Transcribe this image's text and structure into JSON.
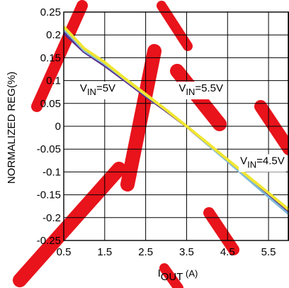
{
  "chart_data": {
    "type": "line",
    "xlabel": "I",
    "xlabel_sub": "OUT",
    "xlabel_unit": " (A)",
    "ylabel": "NORMALIZED REG(%)",
    "xlim": [
      0.5,
      6.0
    ],
    "ylim": [
      -0.25,
      0.25
    ],
    "x_ticks": [
      0.5,
      1.5,
      2.5,
      3.5,
      4.5,
      5.5
    ],
    "y_ticks": [
      0.25,
      0.2,
      0.15,
      0.1,
      0.05,
      0,
      -0.05,
      -0.1,
      -0.15,
      -0.2,
      -0.25
    ],
    "x_tick_labels": [
      "0.5",
      "1.5",
      "2.5",
      "3.5",
      "4.5",
      "5.5"
    ],
    "y_tick_labels": [
      "0.25",
      "0.2",
      "0.15",
      "0.1",
      "0.05",
      "0",
      "-0.05",
      "-0.1",
      "-0.15",
      "-0.2",
      "-0.25"
    ],
    "grid": true,
    "series": [
      {
        "name": "VIN=5V",
        "color": "#5b2d8c",
        "x": [
          0.5,
          1.0,
          1.5,
          2.0,
          2.5,
          3.0,
          3.5,
          4.0,
          4.5,
          5.0,
          5.5,
          6.0
        ],
        "y": [
          0.205,
          0.163,
          0.133,
          0.1,
          0.066,
          0.034,
          0.0,
          -0.038,
          -0.075,
          -0.112,
          -0.15,
          -0.188
        ]
      },
      {
        "name": "VIN=5.5V",
        "color": "#7fb8d8",
        "x": [
          0.5,
          1.0,
          1.5,
          2.0,
          2.5,
          3.0,
          3.5,
          4.0,
          4.5,
          5.0,
          5.5,
          6.0
        ],
        "y": [
          0.212,
          0.165,
          0.136,
          0.102,
          0.068,
          0.035,
          0.0,
          -0.039,
          -0.077,
          -0.116,
          -0.155,
          -0.193
        ]
      },
      {
        "name": "VIN=4.5V",
        "color": "#f0e630",
        "x": [
          0.5,
          1.0,
          1.5,
          2.0,
          2.5,
          3.0,
          3.5,
          4.0,
          4.5,
          5.0,
          5.5,
          6.0
        ],
        "y": [
          0.218,
          0.17,
          0.14,
          0.104,
          0.07,
          0.036,
          0.0,
          -0.036,
          -0.073,
          -0.11,
          -0.146,
          -0.183
        ]
      }
    ],
    "annotations": [
      {
        "main": "V",
        "sub": "IN",
        "rest": "=5V",
        "x": 1.33,
        "y": 0.076
      },
      {
        "main": "V",
        "sub": "IN",
        "rest": "=5.5V",
        "x": 3.85,
        "y": 0.076
      },
      {
        "main": "V",
        "sub": "IN",
        "rest": "=4.5V",
        "x": 5.35,
        "y": -0.083
      }
    ],
    "watermark_color": "#e8131b"
  }
}
